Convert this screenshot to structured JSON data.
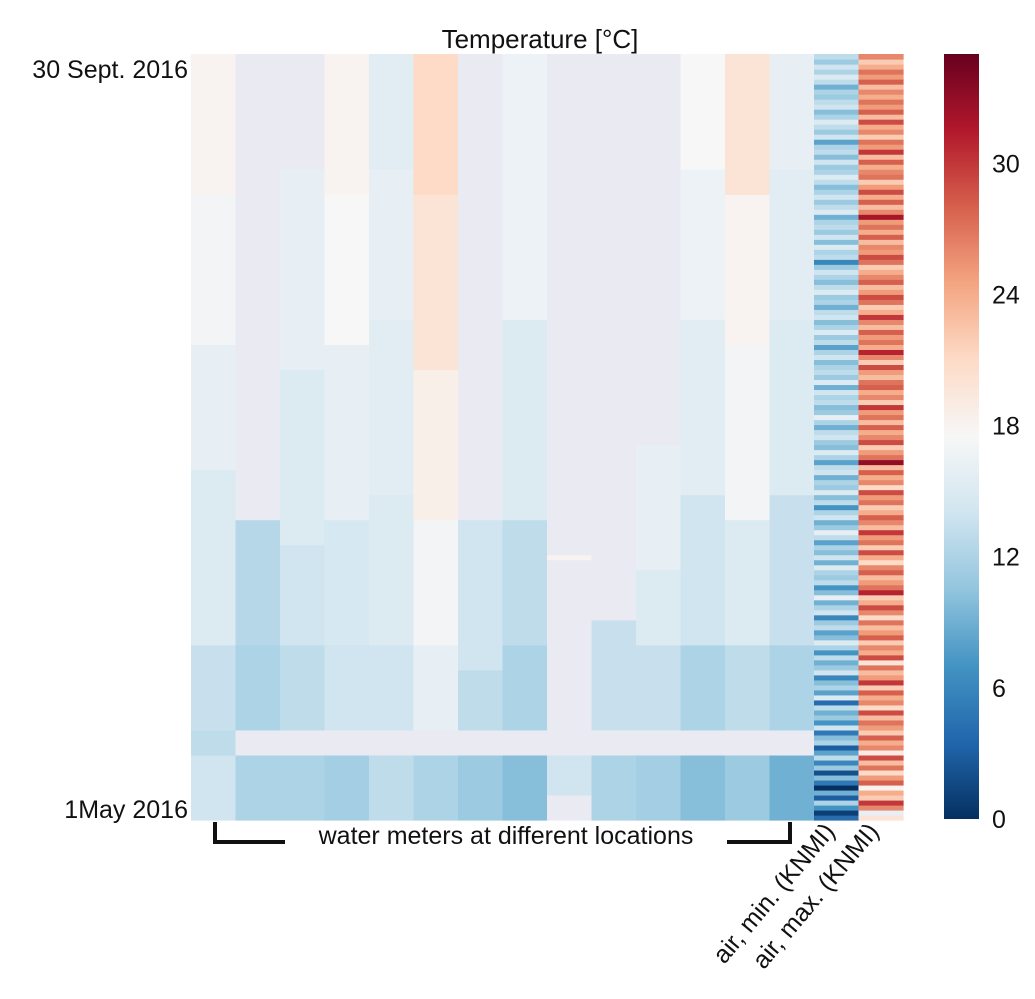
{
  "chart_data": {
    "type": "heatmap",
    "title_prefix": "Temperature ",
    "title_unit": "[°C]",
    "y_top_label": "30 Sept. 2016",
    "y_bottom_label": "1May 2016",
    "bracket_label": "water meters at different locations",
    "column_labels": [
      "air, min. (KNMI)",
      "air, max. (KNMI)"
    ],
    "colormap": "RdBu_r",
    "colorbar_range": [
      0,
      35
    ],
    "colorbar_ticks": [
      0,
      6,
      12,
      18,
      24,
      30
    ],
    "missing_color": "#eaeaf2",
    "n_water_meters": 14,
    "columns": [
      {
        "index": 0,
        "segments": [
          [
            0,
            13,
            14
          ],
          [
            13,
            18,
            13
          ],
          [
            18,
            35,
            13.5
          ],
          [
            35,
            70,
            15
          ],
          [
            70,
            95,
            16
          ],
          [
            95,
            125,
            17
          ],
          [
            125,
            153,
            18
          ]
        ]
      },
      {
        "index": 1,
        "segments": [
          [
            0,
            13,
            12
          ],
          [
            13,
            18,
            null
          ],
          [
            18,
            35,
            12
          ],
          [
            35,
            60,
            12.5
          ],
          [
            60,
            153,
            null
          ]
        ]
      },
      {
        "index": 2,
        "segments": [
          [
            0,
            13,
            12
          ],
          [
            13,
            18,
            null
          ],
          [
            18,
            35,
            13
          ],
          [
            35,
            55,
            14
          ],
          [
            55,
            90,
            15
          ],
          [
            90,
            130,
            16
          ],
          [
            130,
            153,
            null
          ]
        ]
      },
      {
        "index": 3,
        "segments": [
          [
            0,
            13,
            11.5
          ],
          [
            13,
            18,
            null
          ],
          [
            18,
            35,
            14
          ],
          [
            35,
            60,
            14.5
          ],
          [
            60,
            95,
            16
          ],
          [
            95,
            125,
            17.5
          ],
          [
            125,
            153,
            18
          ]
        ]
      },
      {
        "index": 4,
        "segments": [
          [
            0,
            13,
            13
          ],
          [
            13,
            18,
            null
          ],
          [
            18,
            35,
            14
          ],
          [
            35,
            65,
            15
          ],
          [
            65,
            100,
            15.5
          ],
          [
            100,
            130,
            16
          ],
          [
            130,
            153,
            15.5
          ]
        ]
      },
      {
        "index": 5,
        "segments": [
          [
            0,
            13,
            12
          ],
          [
            13,
            18,
            null
          ],
          [
            18,
            35,
            16
          ],
          [
            35,
            60,
            17
          ],
          [
            60,
            90,
            18.5
          ],
          [
            90,
            125,
            20
          ],
          [
            125,
            153,
            21
          ]
        ]
      },
      {
        "index": 6,
        "segments": [
          [
            0,
            13,
            11
          ],
          [
            13,
            18,
            null
          ],
          [
            18,
            30,
            13
          ],
          [
            30,
            60,
            14
          ],
          [
            60,
            153,
            null
          ]
        ]
      },
      {
        "index": 7,
        "segments": [
          [
            0,
            13,
            10
          ],
          [
            13,
            18,
            null
          ],
          [
            18,
            35,
            12
          ],
          [
            35,
            60,
            13
          ],
          [
            60,
            100,
            15
          ],
          [
            100,
            153,
            16.5
          ]
        ]
      },
      {
        "index": 8,
        "segments": [
          [
            0,
            5,
            null
          ],
          [
            5,
            13,
            14
          ],
          [
            13,
            18,
            null
          ],
          [
            18,
            52,
            null
          ],
          [
            52,
            53,
            18
          ],
          [
            53,
            153,
            null
          ]
        ]
      },
      {
        "index": 9,
        "segments": [
          [
            0,
            13,
            12
          ],
          [
            13,
            18,
            null
          ],
          [
            18,
            40,
            13.5
          ],
          [
            40,
            153,
            null
          ]
        ]
      },
      {
        "index": 10,
        "segments": [
          [
            0,
            13,
            11.5
          ],
          [
            13,
            18,
            null
          ],
          [
            18,
            35,
            13.5
          ],
          [
            35,
            50,
            15
          ],
          [
            50,
            75,
            16
          ],
          [
            75,
            153,
            null
          ]
        ]
      },
      {
        "index": 11,
        "segments": [
          [
            0,
            13,
            10
          ],
          [
            13,
            18,
            null
          ],
          [
            18,
            35,
            12
          ],
          [
            35,
            65,
            14
          ],
          [
            65,
            100,
            15.5
          ],
          [
            100,
            130,
            16.5
          ],
          [
            130,
            153,
            17.5
          ]
        ]
      },
      {
        "index": 12,
        "segments": [
          [
            0,
            13,
            11
          ],
          [
            13,
            18,
            null
          ],
          [
            18,
            35,
            13
          ],
          [
            35,
            60,
            15
          ],
          [
            60,
            95,
            17
          ],
          [
            95,
            125,
            18
          ],
          [
            125,
            153,
            20
          ]
        ]
      },
      {
        "index": 13,
        "segments": [
          [
            0,
            13,
            9
          ],
          [
            13,
            18,
            null
          ],
          [
            18,
            35,
            12
          ],
          [
            35,
            65,
            13.5
          ],
          [
            65,
            100,
            15
          ],
          [
            100,
            130,
            15.5
          ],
          [
            130,
            153,
            16
          ]
        ]
      }
    ],
    "air_min": [
      4,
      1,
      7,
      12,
      3,
      9,
      0,
      5,
      10,
      2,
      11,
      6,
      13,
      8,
      3,
      12,
      10,
      5,
      14,
      7,
      11,
      9,
      13,
      4,
      15,
      8,
      12,
      10,
      6,
      14,
      11,
      9,
      13,
      7,
      12,
      15,
      10,
      8,
      13,
      11,
      6,
      14,
      12,
      9,
      16,
      10,
      7,
      13,
      11,
      12,
      15,
      9,
      14,
      10,
      12,
      8,
      13,
      16,
      11,
      9,
      14,
      12,
      7,
      13,
      10,
      15,
      11,
      12,
      9,
      14,
      13,
      8,
      12,
      15,
      10,
      11,
      14,
      13,
      9,
      12,
      16,
      11,
      10,
      13,
      12,
      14,
      9,
      15,
      11,
      13,
      12,
      10,
      14,
      12,
      8,
      13,
      11,
      15,
      12,
      10,
      14,
      13,
      9,
      12,
      11,
      15,
      13,
      10,
      12,
      14,
      11,
      6,
      13,
      12,
      15,
      10,
      14,
      11,
      13,
      12,
      9,
      15,
      13,
      11,
      14,
      12,
      10,
      13,
      15,
      12,
      11,
      14,
      10,
      13,
      12,
      8,
      14,
      11,
      13,
      15,
      12,
      10,
      14,
      13,
      11,
      12,
      9,
      13,
      15,
      12,
      14,
      11,
      13
    ],
    "air_max": [
      20,
      16,
      26,
      30,
      22,
      24,
      18,
      28,
      25,
      21,
      27,
      23,
      29,
      19,
      26,
      24,
      28,
      22,
      25,
      27,
      23,
      29,
      21,
      26,
      24,
      28,
      22,
      30,
      25,
      23,
      27,
      20,
      29,
      24,
      26,
      22,
      28,
      25,
      23,
      27,
      21,
      26,
      29,
      24,
      22,
      31,
      27,
      25,
      23,
      28,
      26,
      21,
      24,
      29,
      22,
      27,
      25,
      30,
      23,
      26,
      28,
      24,
      22,
      27,
      25,
      29,
      21,
      26,
      24,
      28,
      23,
      33,
      27,
      25,
      22,
      29,
      26,
      24,
      28,
      23,
      27,
      25,
      30,
      22,
      26,
      24,
      28,
      27,
      23,
      25,
      29,
      22,
      26,
      31,
      24,
      27,
      25,
      28,
      23,
      26,
      30,
      24,
      22,
      27,
      29,
      25,
      23,
      28,
      26,
      24,
      22,
      27,
      29,
      25,
      26,
      23,
      28,
      24,
      27,
      25,
      32,
      26,
      23,
      28,
      24,
      29,
      25,
      22,
      27,
      26,
      24,
      28,
      23,
      30,
      25,
      27,
      22,
      26,
      24,
      29,
      23,
      28,
      25,
      27,
      24,
      26,
      23,
      28,
      25,
      27,
      24,
      22,
      26
    ]
  }
}
